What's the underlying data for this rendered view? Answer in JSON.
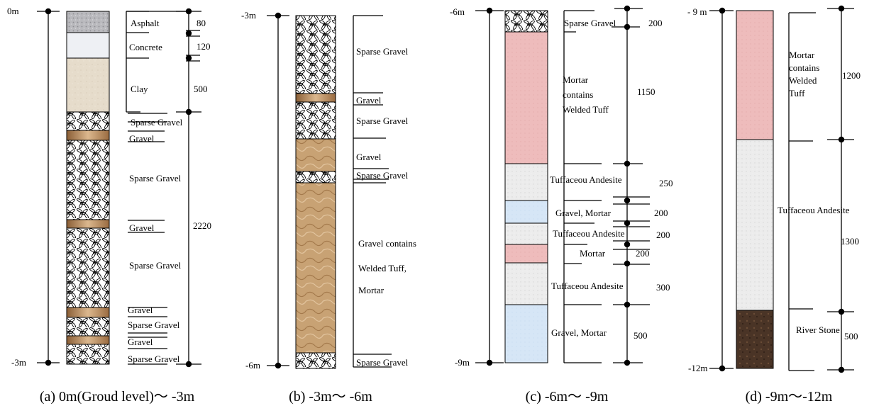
{
  "colors": {
    "asphalt": "#b8b8bc",
    "concrete": "#eef0f4",
    "clay": "#e6dccb",
    "gravel_band": "#b98a5a",
    "gravel_block": "#c8a274",
    "mortar_tuff": "#eebcbc",
    "tuff_andesite": "#eaeaea",
    "gravel_mortar": "#d6e6f6",
    "river_stone": "#4a3426",
    "ink": "#000000"
  },
  "panels": [
    {
      "id": "a",
      "caption": "(a) 0m(Groud level)〜 -3m",
      "top_label": "0m",
      "bottom_label": "-3m",
      "layers": [
        {
          "label": "Asphalt",
          "thickness": "80",
          "material": "asphalt"
        },
        {
          "label": "Concrete",
          "thickness": "120",
          "material": "concrete"
        },
        {
          "label": "Clay",
          "thickness": "500",
          "material": "clay"
        },
        {
          "label": "Sparse Gravel",
          "material": "sparse-gravel"
        },
        {
          "label": "Gravel",
          "material": "gravel-band"
        },
        {
          "label": "Sparse Gravel",
          "material": "sparse-gravel"
        },
        {
          "label": "Gravel",
          "material": "gravel-band"
        },
        {
          "label": "Sparse Gravel",
          "material": "sparse-gravel"
        },
        {
          "label": "Gravel",
          "material": "gravel-band"
        },
        {
          "label": "Sparse Gravel",
          "material": "sparse-gravel"
        },
        {
          "label": "Gravel",
          "material": "gravel-band"
        },
        {
          "label": "Sparse Gravel",
          "material": "sparse-gravel"
        }
      ],
      "group_thickness": "2220"
    },
    {
      "id": "b",
      "caption": "(b) -3m〜 -6m",
      "top_label": "-3m",
      "bottom_label": "-6m",
      "layers": [
        {
          "label": "Sparse Gravel",
          "material": "sparse-gravel"
        },
        {
          "label": "Gravel",
          "material": "gravel-band"
        },
        {
          "label": "Sparse Gravel",
          "material": "sparse-gravel"
        },
        {
          "label": "Gravel",
          "material": "gravel-block"
        },
        {
          "label": "Sparse Gravel",
          "material": "sparse-gravel"
        },
        {
          "label_lines": [
            "Gravel contains",
            "Welded Tuff,",
            "Mortar"
          ],
          "material": "gravel-block"
        },
        {
          "label": "Sparse Gravel",
          "material": "sparse-gravel"
        }
      ]
    },
    {
      "id": "c",
      "caption": "(c) -6m〜 -9m",
      "top_label": "-6m",
      "bottom_label": "-9m",
      "layers": [
        {
          "label": "Sparse Gravel",
          "thickness": "200",
          "material": "sparse-gravel"
        },
        {
          "label_lines": [
            "Mortar",
            "contains",
            "Welded Tuff"
          ],
          "thickness": "1150",
          "material": "mortar-tuff"
        },
        {
          "label": "Tuffaceou Andesite",
          "thickness": "250",
          "material": "tuff-andesite"
        },
        {
          "label": "Gravel, Mortar",
          "thickness": "200",
          "material": "gravel-mortar"
        },
        {
          "label": "Tuffaceou Andesite",
          "thickness": "200",
          "material": "tuff-andesite"
        },
        {
          "label": "Mortar",
          "thickness": "200",
          "material": "mortar-tuff"
        },
        {
          "label": "Tuffaceou Andesite",
          "thickness": "300",
          "material": "tuff-andesite"
        },
        {
          "label": "Gravel, Mortar",
          "thickness": "500",
          "material": "gravel-mortar"
        }
      ]
    },
    {
      "id": "d",
      "caption": "(d) -9m〜-12m",
      "top_label": "- 9 m",
      "bottom_label": "-12m",
      "layers": [
        {
          "label_lines": [
            "Mortar",
            "contains",
            "Welded",
            "Tuff"
          ],
          "thickness": "1200",
          "material": "mortar-tuff"
        },
        {
          "label": "Tuffaceou Andesite",
          "thickness": "1300",
          "material": "tuff-andesite"
        },
        {
          "label": "River Stone",
          "thickness": "500",
          "material": "river-stone"
        }
      ]
    }
  ]
}
